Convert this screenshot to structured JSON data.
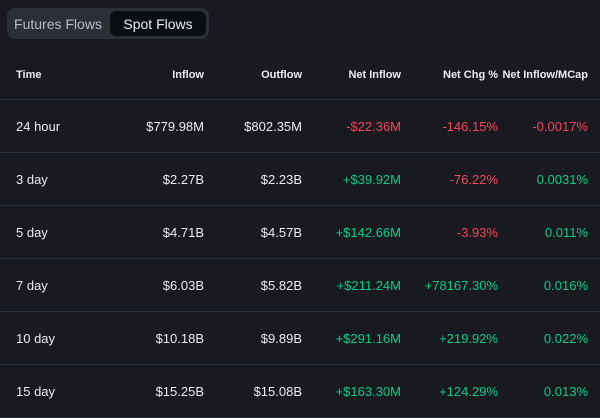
{
  "tabs": [
    {
      "label": "Futures Flows",
      "active": false
    },
    {
      "label": "Spot Flows",
      "active": true
    }
  ],
  "table": {
    "headers": [
      "Time",
      "Inflow",
      "Outflow",
      "Net Inflow",
      "Net Chg %",
      "Net Inflow/MCap"
    ],
    "rows": [
      {
        "time": "24 hour",
        "inflow": "$779.98M",
        "outflow": "$802.35M",
        "net_inflow": "-$22.36M",
        "net_chg": "-146.15%",
        "net_mcap": "-0.0017%"
      },
      {
        "time": "3 day",
        "inflow": "$2.27B",
        "outflow": "$2.23B",
        "net_inflow": "+$39.92M",
        "net_chg": "-76.22%",
        "net_mcap": "0.0031%"
      },
      {
        "time": "5 day",
        "inflow": "$4.71B",
        "outflow": "$4.57B",
        "net_inflow": "+$142.66M",
        "net_chg": "-3.93%",
        "net_mcap": "0.011%"
      },
      {
        "time": "7 day",
        "inflow": "$6.03B",
        "outflow": "$5.82B",
        "net_inflow": "+$211.24M",
        "net_chg": "+78167.30%",
        "net_mcap": "0.016%"
      },
      {
        "time": "10 day",
        "inflow": "$10.18B",
        "outflow": "$9.89B",
        "net_inflow": "+$291.16M",
        "net_chg": "+219.92%",
        "net_mcap": "0.022%"
      },
      {
        "time": "15 day",
        "inflow": "$15.25B",
        "outflow": "$15.08B",
        "net_inflow": "+$163.30M",
        "net_chg": "+124.29%",
        "net_mcap": "0.013%"
      }
    ]
  },
  "colors": {
    "background": "#181a1f",
    "positive": "#0ecb81",
    "negative": "#f6465d",
    "divider": "#2b3139"
  }
}
